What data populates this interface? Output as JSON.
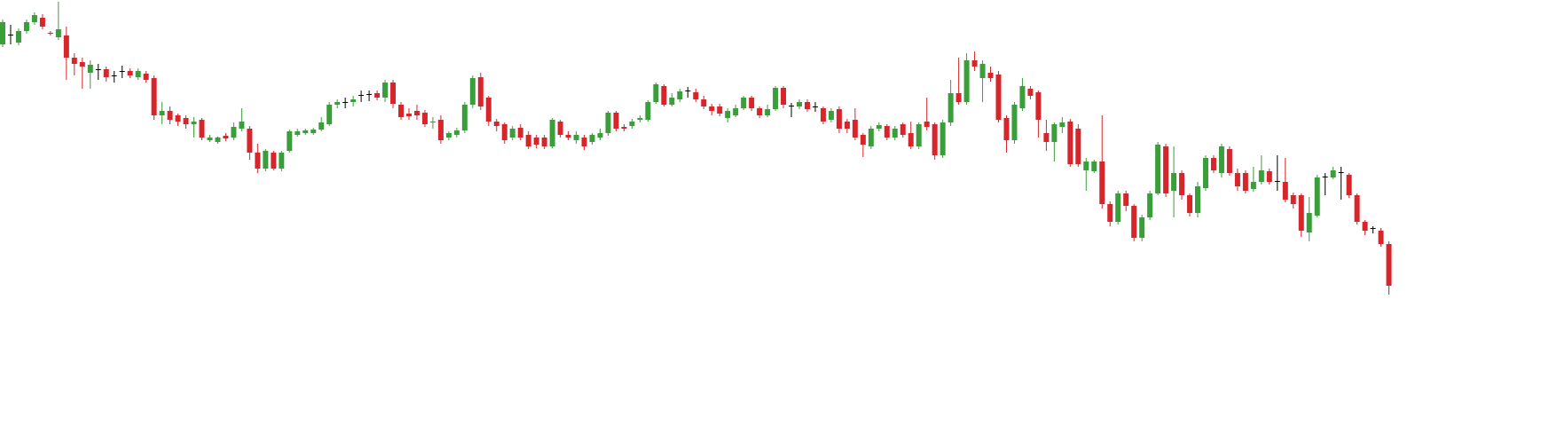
{
  "chart_data": {
    "type": "candlestick",
    "up_color": "#3a9e3a",
    "down_color": "#d7262b",
    "flat_color": "#000000",
    "ylim": [
      3,
      500
    ],
    "open": [
      450,
      461,
      452,
      465,
      475,
      480,
      463,
      458,
      460,
      435,
      430,
      418,
      422,
      422,
      415,
      420,
      420,
      413,
      417,
      412,
      370,
      375,
      370,
      367,
      360,
      365,
      342,
      340,
      347,
      345,
      355,
      355,
      328,
      310,
      328,
      310,
      330,
      348,
      350,
      350,
      354,
      360,
      382,
      385,
      385,
      393,
      394,
      395,
      390,
      407,
      382,
      372,
      375,
      373,
      362,
      365,
      345,
      348,
      353,
      382,
      413,
      390,
      363,
      360,
      345,
      356,
      348,
      345,
      345,
      335,
      363,
      348,
      342,
      345,
      340,
      345,
      350,
      373,
      357,
      358,
      365,
      365,
      385,
      403,
      382,
      388,
      398,
      396,
      388,
      380,
      380,
      367,
      370,
      378,
      390,
      378,
      370,
      377,
      401,
      381,
      380,
      385,
      380,
      378,
      365,
      377,
      363,
      365,
      348,
      335,
      355,
      358,
      345,
      360,
      350,
      335,
      363,
      360,
      325,
      362,
      395,
      385,
      432,
      412,
      418,
      416,
      367,
      342,
      378,
      400,
      396,
      350,
      340,
      357,
      363,
      355,
      308,
      307,
      318,
      270,
      250,
      282,
      268,
      232,
      255,
      282,
      335,
      285,
      305,
      280,
      260,
      288,
      322,
      305,
      332,
      305,
      305,
      287,
      295,
      307,
      296,
      295,
      280,
      280,
      238,
      257,
      301,
      300,
      306,
      303,
      280,
      250,
      243,
      240,
      225
    ],
    "high": [
      478,
      472,
      468,
      478,
      486,
      484,
      465,
      498,
      470,
      440,
      435,
      432,
      428,
      425,
      420,
      426,
      423,
      423,
      420,
      415,
      385,
      380,
      372,
      370,
      368,
      367,
      348,
      346,
      350,
      362,
      378,
      358,
      338,
      332,
      330,
      330,
      354,
      355,
      355,
      356,
      368,
      385,
      388,
      390,
      392,
      398,
      398,
      398,
      410,
      410,
      385,
      378,
      382,
      376,
      368,
      370,
      352,
      356,
      385,
      415,
      418,
      392,
      366,
      362,
      358,
      360,
      352,
      348,
      348,
      367,
      365,
      352,
      352,
      348,
      350,
      355,
      375,
      375,
      360,
      366,
      370,
      387,
      407,
      405,
      395,
      400,
      402,
      400,
      392,
      383,
      383,
      378,
      382,
      392,
      392,
      380,
      382,
      403,
      403,
      384,
      388,
      388,
      385,
      380,
      378,
      380,
      366,
      378,
      350,
      358,
      362,
      360,
      358,
      362,
      363,
      362,
      390,
      362,
      365,
      410,
      435,
      440,
      442,
      432,
      425,
      420,
      370,
      385,
      412,
      403,
      398,
      365,
      362,
      368,
      366,
      360,
      322,
      320,
      370,
      273,
      285,
      285,
      270,
      258,
      285,
      340,
      338,
      335,
      308,
      282,
      295,
      325,
      325,
      338,
      335,
      310,
      308,
      312,
      325,
      310,
      325,
      322,
      283,
      282,
      278,
      303,
      305,
      312,
      312,
      305,
      282,
      252,
      245,
      243,
      228
    ],
    "low": [
      447,
      450,
      449,
      462,
      472,
      467,
      460,
      455,
      410,
      415,
      400,
      400,
      410,
      408,
      407,
      412,
      412,
      410,
      407,
      365,
      360,
      360,
      358,
      355,
      345,
      342,
      340,
      338,
      341,
      342,
      352,
      320,
      305,
      307,
      308,
      307,
      328,
      346,
      348,
      348,
      352,
      358,
      378,
      378,
      380,
      385,
      386,
      387,
      385,
      378,
      365,
      365,
      365,
      357,
      355,
      338,
      342,
      345,
      350,
      378,
      376,
      358,
      352,
      338,
      342,
      342,
      332,
      333,
      332,
      333,
      345,
      342,
      338,
      331,
      337,
      342,
      347,
      352,
      352,
      355,
      362,
      363,
      383,
      380,
      380,
      385,
      390,
      385,
      377,
      370,
      369,
      362,
      368,
      376,
      375,
      367,
      368,
      375,
      378,
      368,
      377,
      374,
      374,
      360,
      362,
      350,
      350,
      342,
      323,
      332,
      352,
      342,
      342,
      345,
      332,
      332,
      353,
      320,
      322,
      358,
      382,
      382,
      420,
      385,
      408,
      362,
      328,
      338,
      375,
      388,
      345,
      330,
      318,
      350,
      312,
      312,
      285,
      305,
      265,
      245,
      247,
      262,
      228,
      228,
      252,
      280,
      278,
      255,
      275,
      256,
      255,
      285,
      305,
      300,
      302,
      285,
      282,
      284,
      292,
      292,
      285,
      272,
      265,
      233,
      228,
      255,
      280,
      298,
      275,
      277,
      247,
      235,
      237,
      222,
      168
    ],
    "close": [
      475,
      461,
      465,
      475,
      483,
      470,
      462,
      467,
      435,
      428,
      425,
      427,
      422,
      413,
      415,
      420,
      415,
      420,
      410,
      370,
      375,
      365,
      363,
      360,
      363,
      345,
      345,
      345,
      344,
      357,
      363,
      328,
      310,
      330,
      310,
      328,
      352,
      352,
      353,
      354,
      362,
      382,
      385,
      385,
      388,
      393,
      394,
      390,
      407,
      383,
      368,
      369,
      370,
      360,
      363,
      342,
      350,
      353,
      382,
      412,
      380,
      363,
      358,
      342,
      355,
      345,
      335,
      337,
      335,
      365,
      348,
      345,
      348,
      335,
      348,
      350,
      373,
      355,
      355,
      363,
      367,
      385,
      405,
      382,
      390,
      397,
      398,
      388,
      380,
      375,
      372,
      375,
      378,
      390,
      378,
      370,
      377,
      401,
      382,
      381,
      385,
      377,
      380,
      363,
      375,
      355,
      355,
      345,
      337,
      355,
      359,
      345,
      355,
      348,
      335,
      360,
      357,
      325,
      362,
      395,
      385,
      432,
      425,
      428,
      412,
      365,
      342,
      382,
      403,
      392,
      365,
      340,
      360,
      362,
      315,
      315,
      318,
      318,
      270,
      250,
      282,
      268,
      232,
      255,
      282,
      337,
      282,
      305,
      280,
      260,
      290,
      322,
      308,
      335,
      305,
      290,
      285,
      295,
      308,
      295,
      296,
      275,
      270,
      240,
      260,
      300,
      301,
      308,
      306,
      280,
      250,
      240,
      243,
      225,
      178
    ]
  }
}
